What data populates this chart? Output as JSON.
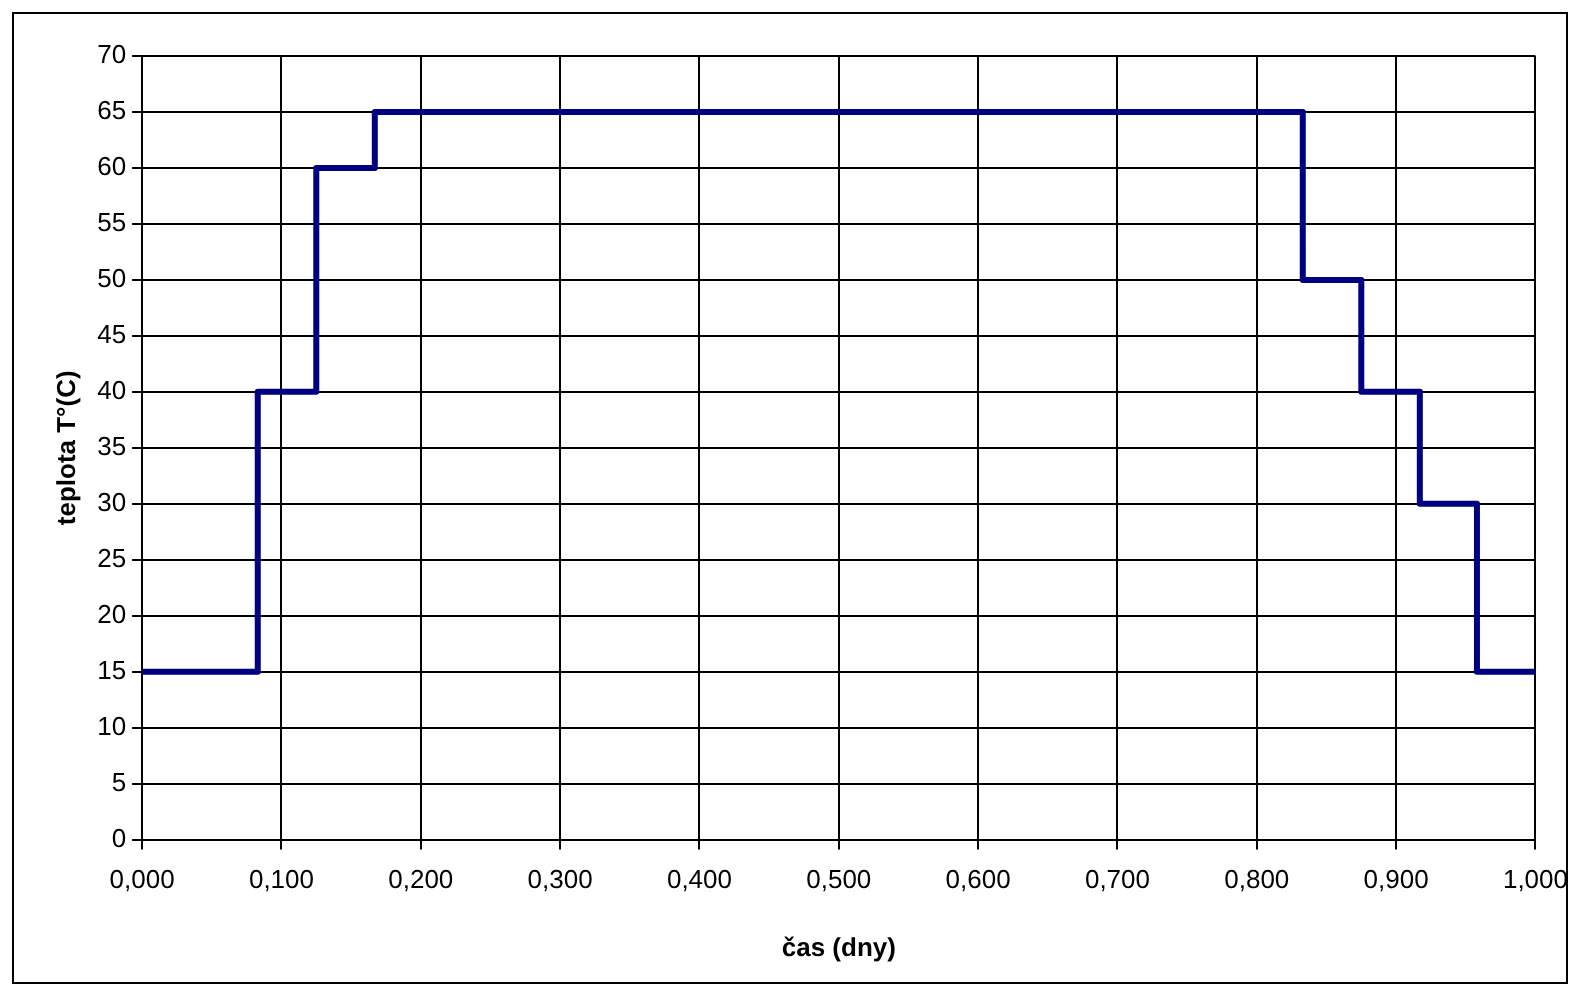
{
  "chart_data": {
    "type": "step",
    "xlabel": "čas (dny)",
    "ylabel": "teplota T°(C)",
    "x": [
      0,
      0.083,
      0.125,
      0.167,
      0.833,
      0.875,
      0.917,
      0.958,
      1.0
    ],
    "series": [
      {
        "color": "#000080",
        "values": [
          15,
          40,
          60,
          65,
          50,
          40,
          30,
          15,
          15
        ]
      }
    ],
    "xlim": [
      0,
      1
    ],
    "xticks": [
      {
        "value": 0,
        "label": "0,000"
      },
      {
        "value": 0.1,
        "label": "0,100"
      },
      {
        "value": 0.2,
        "label": "0,200"
      },
      {
        "value": 0.3,
        "label": "0,300"
      },
      {
        "value": 0.4,
        "label": "0,400"
      },
      {
        "value": 0.5,
        "label": "0,500"
      },
      {
        "value": 0.6,
        "label": "0,600"
      },
      {
        "value": 0.7,
        "label": "0,700"
      },
      {
        "value": 0.8,
        "label": "0,800"
      },
      {
        "value": 0.9,
        "label": "0,900"
      },
      {
        "value": 1.0,
        "label": "1,000"
      }
    ],
    "ylim": [
      0,
      70
    ],
    "yticks": [
      0,
      5,
      10,
      15,
      20,
      25,
      30,
      35,
      40,
      45,
      50,
      55,
      60,
      65,
      70
    ],
    "grid": true,
    "legend": false,
    "marker": "none",
    "line_style": "solid"
  }
}
